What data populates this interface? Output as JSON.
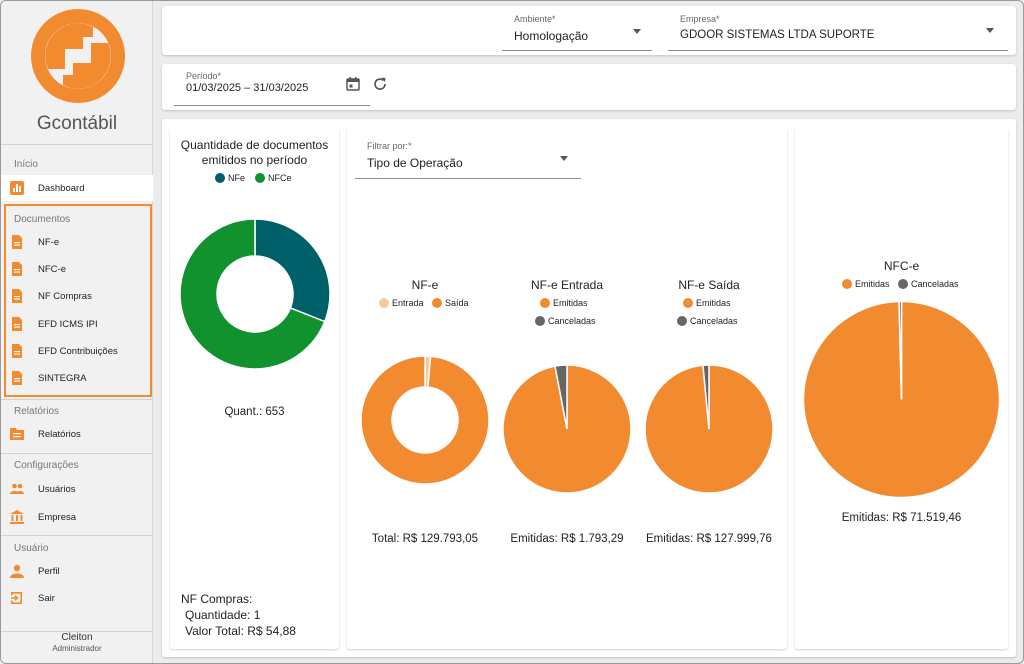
{
  "colors": {
    "accent": "#f28a30",
    "teal": "#00606a",
    "green": "#11922f",
    "peach": "#f7c9a0",
    "gray": "#666666"
  },
  "sidebar": {
    "app_name": "Gcontábil",
    "sections": [
      {
        "label": "Início"
      },
      {
        "label": "Documentos"
      },
      {
        "label": "Relatórios"
      },
      {
        "label": "Configurações"
      },
      {
        "label": "Usuário"
      }
    ],
    "items": [
      {
        "label": "Dashboard",
        "icon": "bar-chart-icon"
      },
      {
        "label": "NF-e",
        "icon": "document-icon"
      },
      {
        "label": "NFC-e",
        "icon": "document-icon"
      },
      {
        "label": "NF Compras",
        "icon": "document-icon"
      },
      {
        "label": "EFD ICMS IPI",
        "icon": "document-icon"
      },
      {
        "label": "EFD Contribuições",
        "icon": "document-icon"
      },
      {
        "label": "SINTEGRA",
        "icon": "document-icon"
      },
      {
        "label": "Relatórios",
        "icon": "report-icon"
      },
      {
        "label": "Usuários",
        "icon": "users-icon"
      },
      {
        "label": "Empresa",
        "icon": "bank-icon"
      },
      {
        "label": "Perfil",
        "icon": "person-icon"
      },
      {
        "label": "Sair",
        "icon": "logout-icon"
      }
    ],
    "user": {
      "name": "Cleiton",
      "role": "Administrador"
    }
  },
  "header": {
    "ambiente": {
      "label": "Ambiente*",
      "value": "Homologação"
    },
    "empresa": {
      "label": "Empresa*",
      "value": "GDOOR SISTEMAS LTDA SUPORTE"
    }
  },
  "periodo": {
    "label": "Período*",
    "value": "01/03/2025 – 31/03/2025"
  },
  "filter": {
    "label": "Filtrar por:*",
    "value": "Tipo de Operação"
  },
  "summary": {
    "title_line1": "Quantidade de documentos",
    "title_line2": "emitidos no período",
    "quant": "Quant.: 653",
    "nf_compras_title": "NF Compras:",
    "nf_compras_qtd": "Quantidade: 1",
    "nf_compras_valor": "Valor Total: R$ 54,88"
  },
  "chart_data": [
    {
      "type": "pie",
      "title": "Quantidade de documentos emitidos no período",
      "donut": true,
      "categories": [
        "NFe",
        "NFCe"
      ],
      "values": [
        0.31,
        0.69
      ],
      "colors": [
        "#00606a",
        "#11922f"
      ]
    },
    {
      "type": "pie",
      "title": "NF-e",
      "donut": true,
      "categories": [
        "Entrada",
        "Saída"
      ],
      "values": [
        0.014,
        0.986
      ],
      "colors": [
        "#f7c9a0",
        "#f28a30"
      ],
      "total_text": "Total: R$ 129.793,05"
    },
    {
      "type": "pie",
      "title": "NF-e Entrada",
      "donut": false,
      "categories": [
        "Emitidas",
        "Canceladas"
      ],
      "values": [
        0.97,
        0.03
      ],
      "colors": [
        "#f28a30",
        "#666666"
      ],
      "total_text": "Emitidas: R$ 1.793,29"
    },
    {
      "type": "pie",
      "title": "NF-e Saída",
      "donut": false,
      "categories": [
        "Emitidas",
        "Canceladas"
      ],
      "values": [
        0.985,
        0.015
      ],
      "colors": [
        "#f28a30",
        "#666666"
      ],
      "total_text": "Emitidas: R$ 127.999,76"
    },
    {
      "type": "pie",
      "title": "NFC-e",
      "donut": false,
      "categories": [
        "Emitidas",
        "Canceladas"
      ],
      "values": [
        0.996,
        0.004
      ],
      "colors": [
        "#f28a30",
        "#666666"
      ],
      "total_text": "Emitidas: R$ 71.519,46"
    }
  ]
}
